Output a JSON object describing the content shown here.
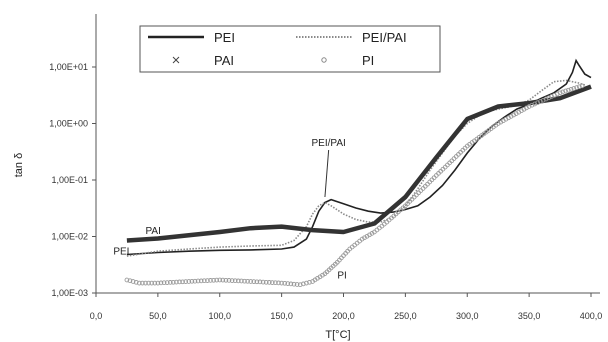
{
  "chart_data": {
    "type": "line",
    "xlabel": "T[°C]",
    "ylabel": "tan δ",
    "xlim": [
      0,
      400
    ],
    "ylim": [
      0.001,
      20
    ],
    "y_scale": "log",
    "x_tick_labels": [
      "0,0",
      "50,0",
      "100,0",
      "150,0",
      "200,0",
      "250,0",
      "300,0",
      "350,0",
      "400,0"
    ],
    "x_tick_values": [
      0,
      50,
      100,
      150,
      200,
      250,
      300,
      350,
      400
    ],
    "y_tick_labels": [
      "1,00E-03",
      "1,00E-02",
      "1,00E-01",
      "1,00E+00",
      "1,00E+01"
    ],
    "y_tick_values": [
      0.001,
      0.01,
      0.1,
      1,
      10
    ],
    "grid": false,
    "legend_position": "top-left",
    "series": [
      {
        "name": "PEI",
        "style": "thin-line",
        "color": "#222222",
        "x": [
          25,
          50,
          75,
          100,
          125,
          150,
          160,
          170,
          175,
          180,
          185,
          190,
          200,
          210,
          220,
          230,
          240,
          250,
          260,
          270,
          280,
          290,
          300,
          310,
          320,
          330,
          340,
          350,
          360,
          370,
          380,
          385,
          388,
          390,
          395,
          400
        ],
        "y": [
          0.0048,
          0.0052,
          0.0055,
          0.0057,
          0.0058,
          0.006,
          0.0065,
          0.009,
          0.015,
          0.028,
          0.04,
          0.045,
          0.038,
          0.032,
          0.028,
          0.026,
          0.027,
          0.03,
          0.035,
          0.05,
          0.08,
          0.15,
          0.3,
          0.55,
          0.9,
          1.3,
          1.8,
          2.2,
          2.8,
          3.5,
          5.0,
          8.0,
          13.0,
          11.0,
          7.5,
          6.5
        ]
      },
      {
        "name": "PEI/PAI",
        "style": "dotted-line",
        "color": "#8a8a8a",
        "x": [
          25,
          50,
          75,
          100,
          125,
          150,
          160,
          170,
          175,
          180,
          185,
          190,
          200,
          210,
          220,
          230,
          240,
          250,
          260,
          270,
          280,
          290,
          300,
          310,
          320,
          330,
          340,
          350,
          360,
          370,
          380,
          390,
          395
        ],
        "y": [
          0.0045,
          0.0055,
          0.006,
          0.0065,
          0.0068,
          0.007,
          0.0085,
          0.015,
          0.025,
          0.035,
          0.04,
          0.035,
          0.025,
          0.02,
          0.018,
          0.018,
          0.022,
          0.035,
          0.07,
          0.15,
          0.3,
          0.6,
          1.0,
          1.4,
          1.7,
          1.9,
          2.1,
          2.6,
          3.8,
          5.5,
          5.8,
          5.2,
          4.8
        ]
      },
      {
        "name": "PAI",
        "style": "thick-line",
        "color": "#333333",
        "x": [
          25,
          50,
          75,
          100,
          125,
          150,
          175,
          200,
          225,
          250,
          275,
          300,
          325,
          350,
          375,
          400
        ],
        "y": [
          0.0085,
          0.0092,
          0.0105,
          0.012,
          0.014,
          0.015,
          0.013,
          0.012,
          0.017,
          0.05,
          0.25,
          1.2,
          2.0,
          2.3,
          2.8,
          4.5
        ]
      },
      {
        "name": "PI",
        "style": "circle-markers",
        "color": "#9a9a9a",
        "x": [
          25,
          35,
          50,
          75,
          100,
          125,
          150,
          165,
          175,
          185,
          195,
          205,
          215,
          225,
          235,
          250,
          275,
          300,
          325,
          350,
          375,
          395
        ],
        "y": [
          0.0017,
          0.0015,
          0.0015,
          0.0016,
          0.0017,
          0.0016,
          0.0015,
          0.0014,
          0.0016,
          0.0022,
          0.0035,
          0.006,
          0.009,
          0.012,
          0.018,
          0.035,
          0.12,
          0.4,
          1.0,
          2.0,
          3.5,
          4.8
        ]
      }
    ],
    "annotations": [
      {
        "text": "PAI",
        "x": 40,
        "y": 0.011
      },
      {
        "text": "PEI",
        "x": 14,
        "y": 0.0048
      },
      {
        "text": "PEI/PAI",
        "x": 188,
        "y": 0.4,
        "arrow_to_x": 185,
        "arrow_to_y": 0.05
      },
      {
        "text": "PI",
        "x": 195,
        "y": 0.0018
      }
    ]
  },
  "legend": {
    "items": [
      {
        "label": "PEI",
        "symbol": "thin-line"
      },
      {
        "label": "PEI/PAI",
        "symbol": "dotted-line"
      },
      {
        "label": "PAI",
        "symbol": "x-marker"
      },
      {
        "label": "PI",
        "symbol": "circle-marker"
      }
    ]
  }
}
